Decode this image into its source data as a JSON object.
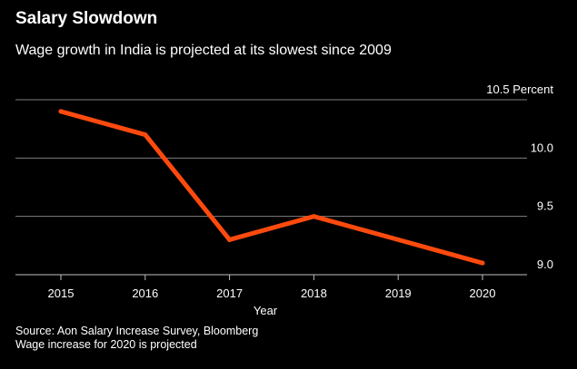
{
  "header": {
    "title": "Salary Slowdown",
    "subtitle": "Wage growth in India is projected at its slowest since 2009"
  },
  "footer": {
    "source": "Source: Aon Salary Increase Survey, Bloomberg",
    "note": "Wage increase for 2020 is projected"
  },
  "colors": {
    "background": "#000000",
    "line": "#ff4a0e",
    "grid": "#7f7f7f",
    "text": "#ffffff"
  },
  "chart_data": {
    "type": "line",
    "title": "Salary Slowdown",
    "subtitle": "Wage growth in India is projected at its slowest since 2009",
    "xlabel": "Year",
    "ylabel": "Percent",
    "x": [
      2015,
      2016,
      2017,
      2018,
      2019,
      2020
    ],
    "series": [
      {
        "values": [
          10.4,
          10.2,
          9.3,
          9.5,
          9.3,
          9.1
        ]
      }
    ],
    "y_ticks": [
      {
        "value": 10.5,
        "label": "10.5 Percent"
      },
      {
        "value": 10.0,
        "label": "10.0"
      },
      {
        "value": 9.5,
        "label": "9.5"
      },
      {
        "value": 9.0,
        "label": "9.0"
      }
    ],
    "x_ticks": [
      "2015",
      "2016",
      "2017",
      "2018",
      "2019",
      "2020"
    ],
    "ylim": [
      9.0,
      10.5
    ],
    "grid": "horizontal",
    "legend": "none"
  }
}
